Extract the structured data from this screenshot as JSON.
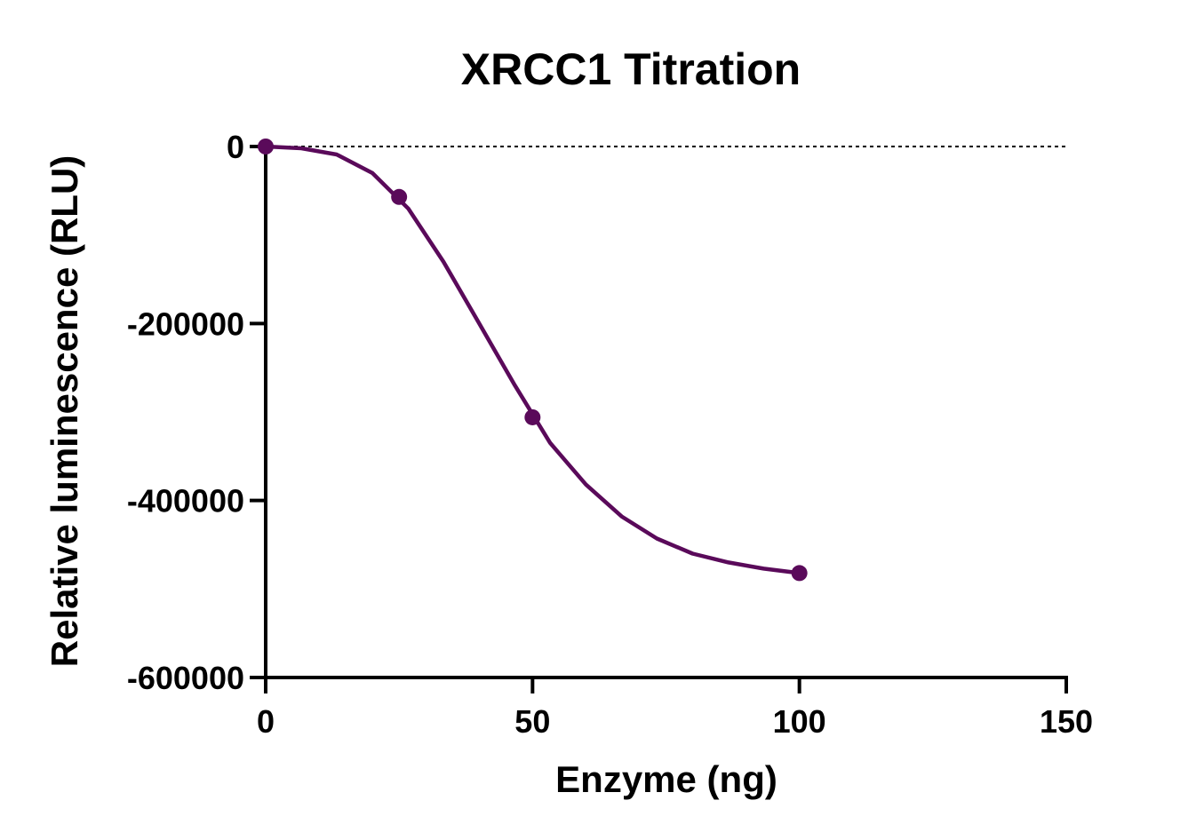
{
  "chart_data": {
    "type": "scatter",
    "title": "XRCC1 Titration",
    "xlabel": "Enzyme (ng)",
    "ylabel": "Relative luminescence (RLU)",
    "xlim": [
      0,
      150
    ],
    "ylim": [
      -600000,
      0
    ],
    "xticks": [
      0,
      50,
      100,
      150
    ],
    "yticks": [
      0,
      -200000,
      -400000,
      -600000
    ],
    "xtick_labels": [
      "0",
      "50",
      "100",
      "150"
    ],
    "ytick_labels": [
      "0",
      "-200000",
      "-400000",
      "-600000"
    ],
    "reference_line_y": 0,
    "grid": false,
    "legend": "none",
    "color": "#5a0a5a",
    "series": [
      {
        "points": [
          {
            "x": 0,
            "y": 0
          },
          {
            "x": 25,
            "y": -57000
          },
          {
            "x": 50,
            "y": -306000
          },
          {
            "x": 100,
            "y": -482000
          }
        ],
        "fit_curve": [
          {
            "x": 0,
            "y": 0
          },
          {
            "x": 6.7,
            "y": -2000
          },
          {
            "x": 13.3,
            "y": -9000
          },
          {
            "x": 20,
            "y": -30000
          },
          {
            "x": 26.7,
            "y": -70000
          },
          {
            "x": 33.3,
            "y": -130000
          },
          {
            "x": 40,
            "y": -200000
          },
          {
            "x": 46.7,
            "y": -270000
          },
          {
            "x": 53.3,
            "y": -335000
          },
          {
            "x": 60,
            "y": -382000
          },
          {
            "x": 66.7,
            "y": -418000
          },
          {
            "x": 73.3,
            "y": -443000
          },
          {
            "x": 80,
            "y": -460000
          },
          {
            "x": 86.7,
            "y": -470000
          },
          {
            "x": 93.3,
            "y": -477000
          },
          {
            "x": 100,
            "y": -482000
          }
        ]
      }
    ]
  }
}
